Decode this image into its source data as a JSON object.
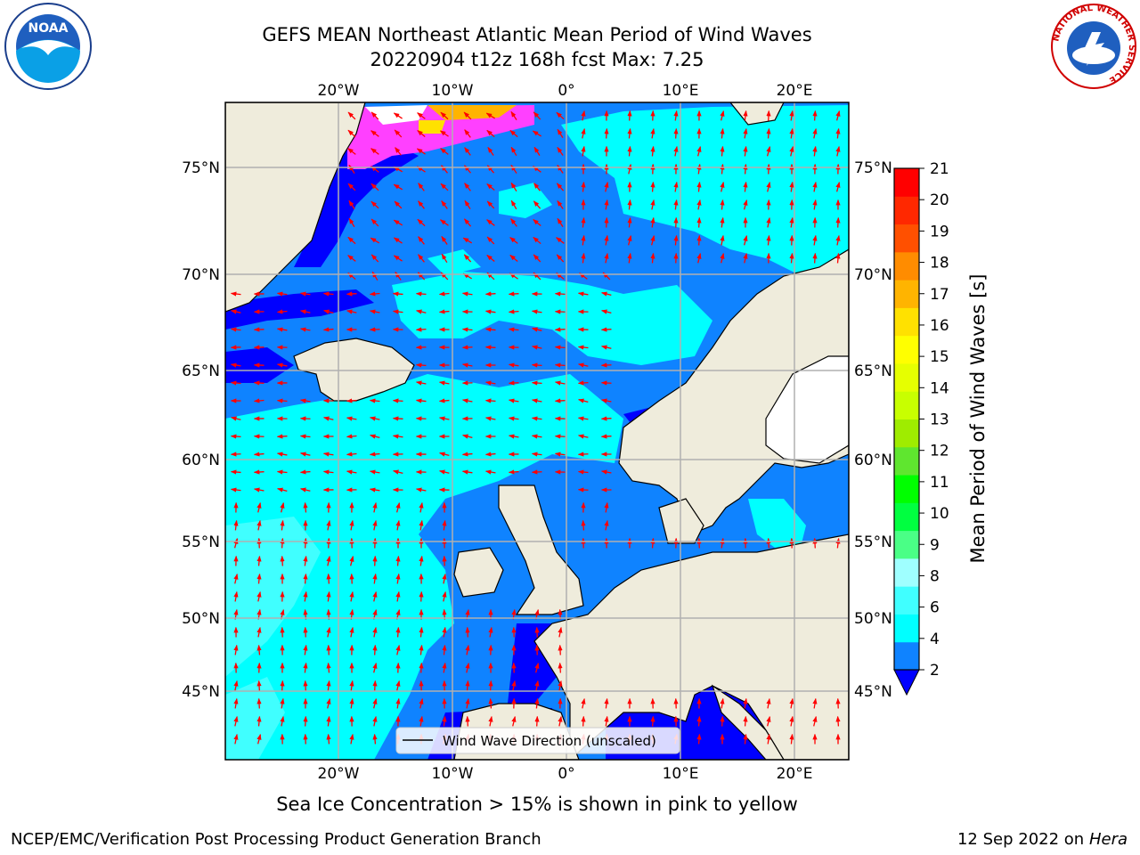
{
  "title": {
    "line1": "GEFS MEAN Northeast Atlantic Mean Period of Wind Waves",
    "line2": "20220904 t12z 168h fcst   Max: 7.25"
  },
  "map": {
    "lon_labels": [
      "20°W",
      "10°W",
      "0°",
      "10°E",
      "20°E"
    ],
    "lon_values": [
      -20,
      -10,
      0,
      10,
      20
    ],
    "lat_labels": [
      "75°N",
      "70°N",
      "65°N",
      "60°N",
      "55°N",
      "50°N",
      "45°N"
    ],
    "lat_values": [
      75,
      70,
      65,
      60,
      55,
      50,
      45
    ],
    "legend_label": "Wind Wave Direction (unscaled)",
    "colors": {
      "land": "#efecdc",
      "ocean_2_4": "#0f83ff",
      "ocean_below_2": "#0000ff",
      "ocean_4_6": "#00ffff",
      "ocean_6_8": "#40ffff",
      "ice": "#ff40ff",
      "arrow": "#ff0000",
      "grid": "#b0b0b0"
    }
  },
  "colorbar": {
    "label": "Mean Period of Wind Waves [s]",
    "ticks": [
      "2",
      "4",
      "6",
      "8",
      "9",
      "10",
      "11",
      "12",
      "13",
      "14",
      "15",
      "16",
      "17",
      "18",
      "19",
      "20",
      "21"
    ],
    "colors": [
      "#0f83ff",
      "#00ffff",
      "#40ffff",
      "#9fffff",
      "#4aff86",
      "#00ff40",
      "#00ff00",
      "#5fe62f",
      "#9fec00",
      "#c8ff00",
      "#e6ff00",
      "#ffff00",
      "#ffe100",
      "#ffb400",
      "#ff8c00",
      "#ff5000",
      "#ff2800",
      "#ff0000"
    ],
    "underflow_color": "#0000ff"
  },
  "footer": {
    "note": "Sea Ice Concentration > 15% is shown in pink to yellow",
    "credit": "NCEP/EMC/Verification Post Processing Product Generation Branch",
    "date": "12 Sep 2022 on",
    "machine": "Hera"
  },
  "logos": {
    "noaa_text": "NOAA",
    "nws_text": "NATIONAL WEATHER SERVICE"
  }
}
